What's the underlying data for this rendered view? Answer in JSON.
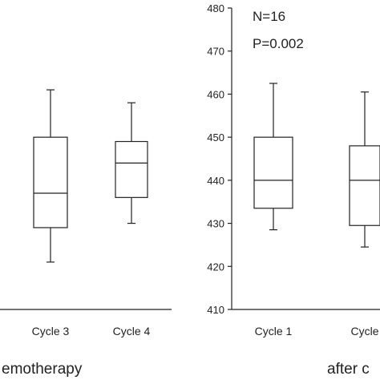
{
  "chart_data": [
    {
      "type": "box",
      "title": "",
      "xlabel": "",
      "ylabel": "",
      "group_label": "emotherapy",
      "categories": [
        "Cycle 3",
        "Cycle 4"
      ],
      "ylim": [
        410,
        480
      ],
      "yticks": [],
      "boxes": [
        {
          "category": "Cycle 3",
          "whisker_low": 421,
          "q1": 429,
          "median": 437,
          "q3": 450,
          "whisker_high": 461
        },
        {
          "category": "Cycle 4",
          "whisker_low": 430,
          "q1": 436,
          "median": 444,
          "q3": 449,
          "whisker_high": 458
        }
      ]
    },
    {
      "type": "box",
      "title": "",
      "xlabel": "",
      "ylabel": "",
      "group_label": "after c",
      "categories": [
        "Cycle 1",
        "Cycle"
      ],
      "ylim": [
        410,
        480
      ],
      "yticks": [
        410,
        420,
        430,
        440,
        450,
        460,
        470,
        480
      ],
      "annotations": [
        "N=16",
        "P=0.002"
      ],
      "boxes": [
        {
          "category": "Cycle 1",
          "whisker_low": 428.5,
          "q1": 433.5,
          "median": 440,
          "q3": 450,
          "whisker_high": 462.5
        },
        {
          "category": "Cycle",
          "whisker_low": 424.5,
          "q1": 429.5,
          "median": 440,
          "q3": 448,
          "whisker_high": 460.5
        }
      ]
    }
  ]
}
